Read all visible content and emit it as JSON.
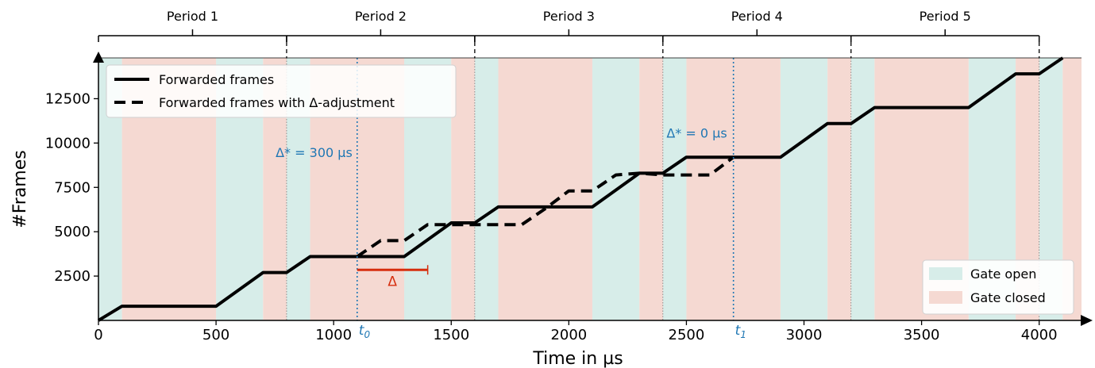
{
  "chart_data": {
    "type": "line",
    "xlabel": "Time in µs",
    "ylabel": "#Frames",
    "xlim": [
      0,
      4180
    ],
    "ylim": [
      0,
      14800
    ],
    "xticks": [
      0,
      500,
      1000,
      1500,
      2000,
      2500,
      3000,
      3500,
      4000
    ],
    "yticks": [
      2500,
      5000,
      7500,
      10000,
      12500
    ],
    "xtick_labels": [
      "0",
      "500",
      "1000",
      "1500",
      "2000",
      "2500",
      "3000",
      "3500",
      "4000"
    ],
    "ytick_labels": [
      "2500",
      "5000",
      "7500",
      "10000",
      "12500"
    ],
    "grid": false,
    "legend_position": "top-left",
    "series": [
      {
        "name": "Forwarded frames",
        "style": "solid",
        "x": [
          0,
          100,
          500,
          700,
          800,
          900,
          1100,
          1300,
          1500,
          1600,
          1700,
          2100,
          2300,
          2400,
          2500,
          2900,
          3100,
          3200,
          3300,
          3700,
          3900,
          4000,
          4100
        ],
        "y": [
          0,
          800,
          800,
          2700,
          2700,
          3600,
          3600,
          3600,
          5500,
          5500,
          6400,
          6400,
          8300,
          8300,
          9200,
          9200,
          11100,
          11100,
          12000,
          12000,
          13900,
          13900,
          14800
        ]
      },
      {
        "name": "Forwarded frames with Δ-adjustment",
        "style": "dashed",
        "x": [
          1100,
          1200,
          1300,
          1400,
          1500,
          1600,
          1800,
          1900,
          2000,
          2100,
          2200,
          2300,
          2400,
          2600,
          2700
        ],
        "y": [
          3600,
          4500,
          4500,
          5400,
          5400,
          5400,
          5400,
          6300,
          7300,
          7300,
          8200,
          8300,
          8200,
          8200,
          9200
        ]
      }
    ],
    "gate_intervals": {
      "open": [
        [
          0,
          100
        ],
        [
          500,
          700
        ],
        [
          800,
          900
        ],
        [
          1300,
          1500
        ],
        [
          1600,
          1700
        ],
        [
          2100,
          2300
        ],
        [
          2400,
          2500
        ],
        [
          2900,
          3100
        ],
        [
          3200,
          3300
        ],
        [
          3700,
          3900
        ],
        [
          4000,
          4100
        ]
      ],
      "closed": [
        [
          100,
          500
        ],
        [
          700,
          800
        ],
        [
          900,
          1300
        ],
        [
          1500,
          1600
        ],
        [
          1700,
          2100
        ],
        [
          2300,
          2400
        ],
        [
          2500,
          2900
        ],
        [
          3100,
          3200
        ],
        [
          3300,
          3700
        ],
        [
          3900,
          4000
        ],
        [
          4100,
          4180
        ]
      ]
    },
    "gate_legend": {
      "open_label": "Gate open",
      "closed_label": "Gate closed",
      "position": "bottom-right"
    },
    "periods": [
      {
        "label": "Period 1",
        "start": 0,
        "end": 800
      },
      {
        "label": "Period 2",
        "start": 800,
        "end": 1600
      },
      {
        "label": "Period 3",
        "start": 1600,
        "end": 2400
      },
      {
        "label": "Period 4",
        "start": 2400,
        "end": 3200
      },
      {
        "label": "Period 5",
        "start": 3200,
        "end": 4000
      }
    ],
    "annotations": {
      "t0": {
        "x": 1100,
        "label": "t0",
        "delta_label": "Δ* = 300 µs",
        "delta_y": 9200
      },
      "t1": {
        "x": 2700,
        "label": "t1",
        "delta_label": "Δ* = 0 µs",
        "delta_y": 10300
      },
      "delta_bar": {
        "x_start": 1100,
        "x_end": 1400,
        "y": 2850,
        "label": "Δ"
      }
    },
    "colors": {
      "open": "#d7ede9",
      "closed": "#f5d9d2",
      "line": "#000000",
      "annotation": "#1f77b4",
      "delta": "#d62e0e"
    }
  }
}
